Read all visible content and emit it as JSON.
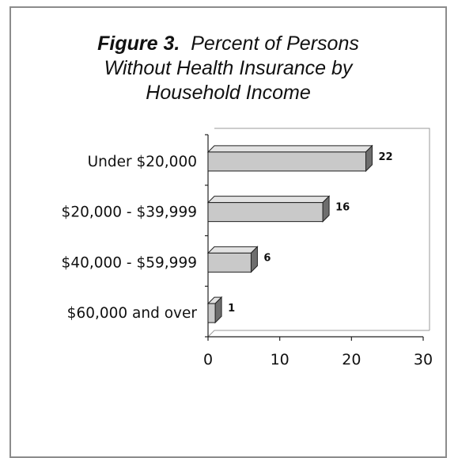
{
  "chart_data": {
    "type": "bar",
    "orientation": "horizontal",
    "style": "3d",
    "title_bold": "Figure 3.",
    "title_rest": "Percent of Persons",
    "title_line2": "Without Health Insurance by",
    "title_line3": "Household Income",
    "categories": [
      "Under $20,000",
      "$20,000 - $39,999",
      "$40,000 - $59,999",
      "$60,000 and over"
    ],
    "values": [
      22,
      16,
      6,
      1
    ],
    "data_labels": [
      "22",
      "16",
      "6",
      "1"
    ],
    "xlim": [
      0,
      30
    ],
    "xticks": [
      "0",
      "10",
      "20",
      "30"
    ],
    "grid": false,
    "legend": "none",
    "colors": {
      "bar_front": "#c9c9c9",
      "bar_top": "#e2e2e2",
      "bar_side": "#6e6e6e",
      "outline": "#222222"
    }
  }
}
